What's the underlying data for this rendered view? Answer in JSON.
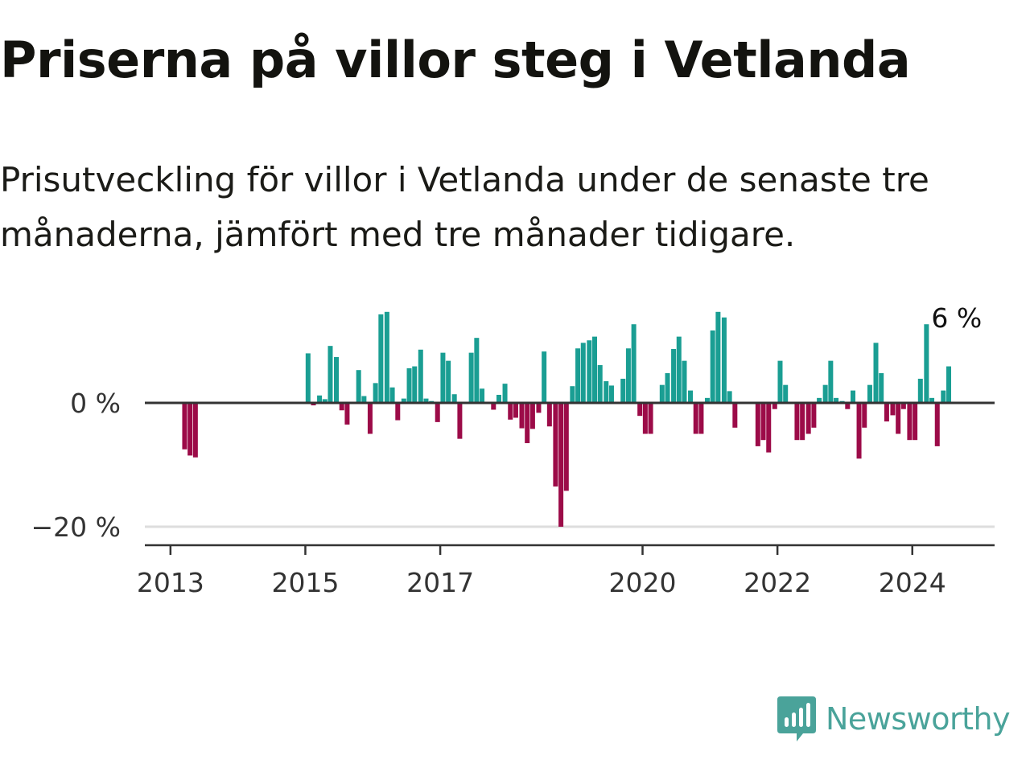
{
  "title": "Priserna på villor steg i Vetlanda",
  "subtitle": "Prisutveckling för villor i Vetlanda under de senaste tre månaderna, jämfört med tre månader tidigare.",
  "brand": {
    "name": "Newsworthy",
    "color": "#4aa39a",
    "icon": "newsworthy-logo-icon"
  },
  "colors": {
    "positive": "#1a9e93",
    "negative": "#9c0b48",
    "zero_line": "#333333",
    "grid": "#dddddd",
    "axis": "#333333"
  },
  "chart_data": {
    "type": "bar",
    "unit": "%",
    "ylim": [
      -22,
      15
    ],
    "yticks": [
      {
        "value": 0,
        "label": "0 %"
      },
      {
        "value": -20,
        "label": "−20 %"
      }
    ],
    "xticks": [
      {
        "value": 2013,
        "label": "2013"
      },
      {
        "value": 2015,
        "label": "2015"
      },
      {
        "value": 2017,
        "label": "2017"
      },
      {
        "value": 2020,
        "label": "2020"
      },
      {
        "value": 2022,
        "label": "2022"
      },
      {
        "value": 2024,
        "label": "2024"
      }
    ],
    "xlim": [
      2012.62,
      2025.22
    ],
    "grid": "horizontal",
    "annotation": {
      "x": 2024.33,
      "y": 12.5,
      "text": "6 %"
    },
    "points": [
      {
        "x": 2013.21,
        "y": -7.5
      },
      {
        "x": 2013.29,
        "y": -8.5
      },
      {
        "x": 2013.37,
        "y": -8.8
      },
      {
        "x": 2015.04,
        "y": 8
      },
      {
        "x": 2015.12,
        "y": -0.4
      },
      {
        "x": 2015.21,
        "y": 1.2
      },
      {
        "x": 2015.29,
        "y": 0.6
      },
      {
        "x": 2015.37,
        "y": 9.2
      },
      {
        "x": 2015.46,
        "y": 7.4
      },
      {
        "x": 2015.54,
        "y": -1.2
      },
      {
        "x": 2015.62,
        "y": -3.5
      },
      {
        "x": 2015.79,
        "y": 5.3
      },
      {
        "x": 2015.87,
        "y": 1.1
      },
      {
        "x": 2015.96,
        "y": -5
      },
      {
        "x": 2016.04,
        "y": 3.2
      },
      {
        "x": 2016.12,
        "y": 14.3
      },
      {
        "x": 2016.21,
        "y": 14.7
      },
      {
        "x": 2016.29,
        "y": 2.5
      },
      {
        "x": 2016.37,
        "y": -2.8
      },
      {
        "x": 2016.46,
        "y": 0.7
      },
      {
        "x": 2016.54,
        "y": 5.6
      },
      {
        "x": 2016.62,
        "y": 5.9
      },
      {
        "x": 2016.71,
        "y": 8.6
      },
      {
        "x": 2016.79,
        "y": 0.7
      },
      {
        "x": 2016.87,
        "y": 0.3
      },
      {
        "x": 2016.96,
        "y": -3.1
      },
      {
        "x": 2017.04,
        "y": 8.1
      },
      {
        "x": 2017.12,
        "y": 6.8
      },
      {
        "x": 2017.21,
        "y": 1.4
      },
      {
        "x": 2017.29,
        "y": -5.8
      },
      {
        "x": 2017.46,
        "y": 8.1
      },
      {
        "x": 2017.54,
        "y": 10.5
      },
      {
        "x": 2017.62,
        "y": 2.3
      },
      {
        "x": 2017.79,
        "y": -1.1
      },
      {
        "x": 2017.87,
        "y": 1.3
      },
      {
        "x": 2017.96,
        "y": 3.1
      },
      {
        "x": 2018.04,
        "y": -2.7
      },
      {
        "x": 2018.12,
        "y": -2.4
      },
      {
        "x": 2018.21,
        "y": -4.1
      },
      {
        "x": 2018.29,
        "y": -6.5
      },
      {
        "x": 2018.37,
        "y": -4.2
      },
      {
        "x": 2018.46,
        "y": -1.6
      },
      {
        "x": 2018.54,
        "y": 8.3
      },
      {
        "x": 2018.62,
        "y": -3.8
      },
      {
        "x": 2018.71,
        "y": -13.5
      },
      {
        "x": 2018.79,
        "y": -20
      },
      {
        "x": 2018.87,
        "y": -14.2
      },
      {
        "x": 2018.96,
        "y": 2.7
      },
      {
        "x": 2019.04,
        "y": 8.8
      },
      {
        "x": 2019.12,
        "y": 9.7
      },
      {
        "x": 2019.21,
        "y": 10.1
      },
      {
        "x": 2019.29,
        "y": 10.7
      },
      {
        "x": 2019.37,
        "y": 6.1
      },
      {
        "x": 2019.46,
        "y": 3.5
      },
      {
        "x": 2019.54,
        "y": 2.8
      },
      {
        "x": 2019.71,
        "y": 3.9
      },
      {
        "x": 2019.79,
        "y": 8.8
      },
      {
        "x": 2019.87,
        "y": 12.7
      },
      {
        "x": 2019.96,
        "y": -2.1
      },
      {
        "x": 2020.04,
        "y": -5
      },
      {
        "x": 2020.12,
        "y": -5
      },
      {
        "x": 2020.29,
        "y": 2.9
      },
      {
        "x": 2020.37,
        "y": 4.8
      },
      {
        "x": 2020.46,
        "y": 8.7
      },
      {
        "x": 2020.54,
        "y": 10.7
      },
      {
        "x": 2020.62,
        "y": 6.8
      },
      {
        "x": 2020.71,
        "y": 2
      },
      {
        "x": 2020.79,
        "y": -5
      },
      {
        "x": 2020.87,
        "y": -5
      },
      {
        "x": 2020.96,
        "y": 0.8
      },
      {
        "x": 2021.04,
        "y": 11.7
      },
      {
        "x": 2021.12,
        "y": 14.7
      },
      {
        "x": 2021.21,
        "y": 13.8
      },
      {
        "x": 2021.29,
        "y": 1.9
      },
      {
        "x": 2021.37,
        "y": -4
      },
      {
        "x": 2021.71,
        "y": -7
      },
      {
        "x": 2021.79,
        "y": -6
      },
      {
        "x": 2021.87,
        "y": -8
      },
      {
        "x": 2021.96,
        "y": -1
      },
      {
        "x": 2022.04,
        "y": 6.8
      },
      {
        "x": 2022.12,
        "y": 2.9
      },
      {
        "x": 2022.29,
        "y": -6
      },
      {
        "x": 2022.37,
        "y": -6
      },
      {
        "x": 2022.46,
        "y": -5
      },
      {
        "x": 2022.54,
        "y": -4
      },
      {
        "x": 2022.62,
        "y": 0.8
      },
      {
        "x": 2022.71,
        "y": 2.9
      },
      {
        "x": 2022.79,
        "y": 6.8
      },
      {
        "x": 2022.87,
        "y": 0.8
      },
      {
        "x": 2022.96,
        "y": 0.3
      },
      {
        "x": 2023.04,
        "y": -1
      },
      {
        "x": 2023.12,
        "y": 2
      },
      {
        "x": 2023.21,
        "y": -9
      },
      {
        "x": 2023.29,
        "y": -4
      },
      {
        "x": 2023.37,
        "y": 2.9
      },
      {
        "x": 2023.46,
        "y": 9.7
      },
      {
        "x": 2023.54,
        "y": 4.8
      },
      {
        "x": 2023.62,
        "y": -3
      },
      {
        "x": 2023.71,
        "y": -2
      },
      {
        "x": 2023.79,
        "y": -5
      },
      {
        "x": 2023.87,
        "y": -1
      },
      {
        "x": 2023.96,
        "y": -6
      },
      {
        "x": 2024.04,
        "y": -6
      },
      {
        "x": 2024.12,
        "y": 3.9
      },
      {
        "x": 2024.21,
        "y": 12.7
      },
      {
        "x": 2024.29,
        "y": 0.8
      },
      {
        "x": 2024.37,
        "y": -7
      },
      {
        "x": 2024.46,
        "y": 2
      },
      {
        "x": 2024.54,
        "y": 5.9
      }
    ]
  }
}
